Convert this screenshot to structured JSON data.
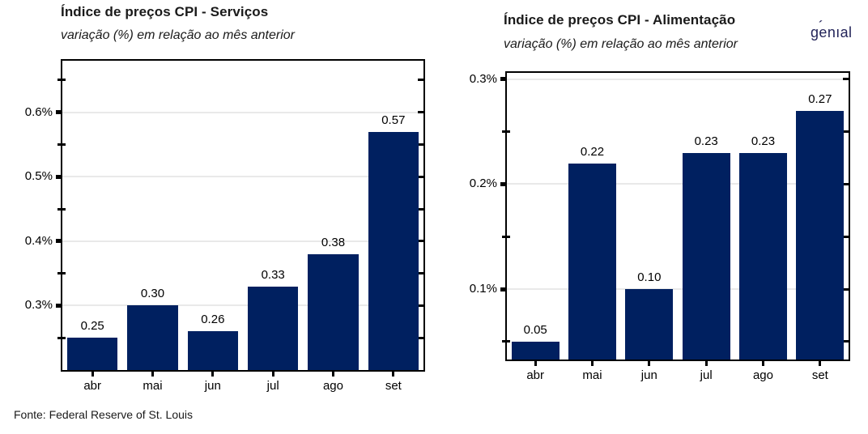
{
  "logo": {
    "text": "genıal",
    "accent": "´",
    "color": "#232459"
  },
  "footer": {
    "source": "Fonte: Federal Reserve of St. Louis"
  },
  "chart_data": [
    {
      "type": "bar",
      "title": "Índice de preços CPI - Serviços",
      "subtitle": "variação (%) em relação ao mês anterior",
      "categories": [
        "abr",
        "mai",
        "jun",
        "jul",
        "ago",
        "set"
      ],
      "values": [
        0.25,
        0.3,
        0.26,
        0.33,
        0.38,
        0.57
      ],
      "value_labels": [
        "0.25",
        "0.30",
        "0.26",
        "0.33",
        "0.38",
        "0.57"
      ],
      "xlabel": "",
      "ylabel": "",
      "unit": "%",
      "ylim": [
        0.2,
        0.68
      ],
      "yticks": [
        {
          "value": 0.3,
          "label": "0.3%"
        },
        {
          "value": 0.4,
          "label": "0.4%"
        },
        {
          "value": 0.5,
          "label": "0.5%"
        },
        {
          "value": 0.6,
          "label": "0.6%"
        }
      ],
      "minor_yticks": [
        0.25,
        0.35,
        0.45,
        0.55,
        0.65
      ],
      "grid": true,
      "legend": false,
      "bar_color": "#002060",
      "gridline_color": "#e9e9e9",
      "axis_color": "#000000"
    },
    {
      "type": "bar",
      "title": "Índice de preços CPI - Alimentação",
      "subtitle": "variação (%) em relação ao mês anterior",
      "categories": [
        "abr",
        "mai",
        "jun",
        "jul",
        "ago",
        "set"
      ],
      "values": [
        0.05,
        0.22,
        0.1,
        0.23,
        0.23,
        0.27
      ],
      "value_labels": [
        "0.05",
        "0.22",
        "0.10",
        "0.23",
        "0.23",
        "0.27"
      ],
      "xlabel": "",
      "ylabel": "",
      "unit": "%",
      "ylim": [
        0.033,
        0.306
      ],
      "yticks": [
        {
          "value": 0.1,
          "label": "0.1%"
        },
        {
          "value": 0.2,
          "label": "0.2%"
        },
        {
          "value": 0.3,
          "label": "0.3%"
        }
      ],
      "minor_yticks": [
        0.05,
        0.15,
        0.25
      ],
      "grid": true,
      "legend": false,
      "bar_color": "#002060",
      "gridline_color": "#e9e9e9",
      "axis_color": "#000000"
    }
  ]
}
